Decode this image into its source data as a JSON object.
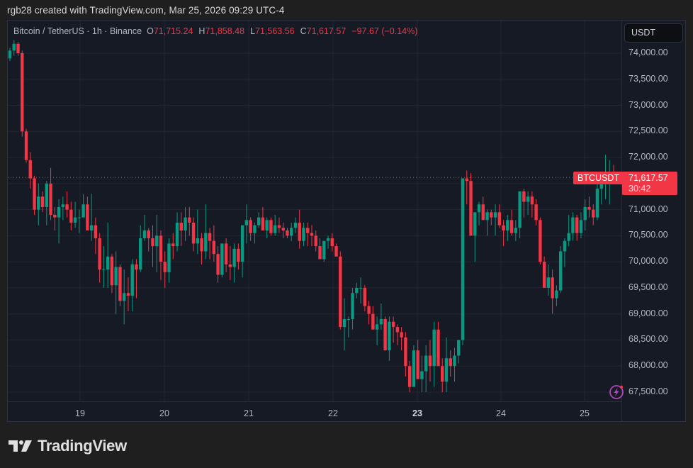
{
  "credit": "rgb28 created with TradingView.com, Mar 25, 2026 09:29 UTC-4",
  "legend": {
    "symbol": "Bitcoin / TetherUS · 1h · Binance",
    "o_label": "O",
    "o_value": "71,715.24",
    "h_label": "H",
    "h_value": "71,858.48",
    "l_label": "L",
    "l_value": "71,563.56",
    "c_label": "C",
    "c_value": "71,617.57",
    "change": "−97.67 (−0.14%)"
  },
  "currency_button": "USDT",
  "last_price": {
    "symbol": "BTCUSDT",
    "price": "71,617.57",
    "countdown": "30:42"
  },
  "brand": "TradingView",
  "icons": {
    "logo": "tradingview-logo-icon",
    "alert": "lightning-bolt-icon"
  },
  "colors": {
    "up": "#089981",
    "down": "#f23645",
    "bg": "#161a25",
    "grid": "#232733",
    "text": "#b2b5be",
    "alert": "#9c27b0"
  },
  "y_axis": [
    "74,000.00",
    "73,500.00",
    "73,000.00",
    "72,500.00",
    "72,000.00",
    "71,000.00",
    "70,500.00",
    "70,000.00",
    "69,500.00",
    "69,000.00",
    "68,500.00",
    "68,000.00",
    "67,500.00"
  ],
  "x_axis": [
    "19",
    "20",
    "21",
    "22",
    "23",
    "24",
    "25"
  ],
  "chart_data": {
    "type": "candlestick",
    "title": "Bitcoin / TetherUS · 1h · Binance",
    "xlabel": "",
    "ylabel": "USDT",
    "ylim": [
      67300,
      74300
    ],
    "y_ticks": [
      67500,
      68000,
      68500,
      69000,
      69500,
      70000,
      70500,
      71000,
      71500,
      72000,
      72500,
      73000,
      73500,
      74000
    ],
    "x_ticks": [
      "19",
      "20",
      "21",
      "22",
      "23",
      "24",
      "25"
    ],
    "last_price": 71617.57,
    "grid": true,
    "candles": [
      [
        73900,
        74100,
        73850,
        74050
      ],
      [
        74050,
        74250,
        73950,
        74180
      ],
      [
        74180,
        74220,
        73950,
        74000
      ],
      [
        74000,
        74050,
        72400,
        72500
      ],
      [
        72500,
        72550,
        71900,
        71950
      ],
      [
        71950,
        72100,
        71400,
        71600
      ],
      [
        71600,
        71650,
        70900,
        71000
      ],
      [
        71000,
        71500,
        70700,
        71250
      ],
      [
        71250,
        71350,
        70950,
        71050
      ],
      [
        71050,
        71550,
        70700,
        71500
      ],
      [
        71500,
        71800,
        70800,
        70900
      ],
      [
        70900,
        71050,
        70600,
        70850
      ],
      [
        70850,
        71200,
        70350,
        71050
      ],
      [
        71050,
        71250,
        70800,
        71100
      ],
      [
        71100,
        71350,
        70850,
        71000
      ],
      [
        71000,
        71150,
        70600,
        70750
      ],
      [
        70750,
        71150,
        70650,
        70850
      ],
      [
        70850,
        71000,
        70550,
        70850
      ],
      [
        70850,
        71300,
        70900,
        71100
      ],
      [
        71100,
        71250,
        70600,
        70600
      ],
      [
        70600,
        71300,
        70400,
        70700
      ],
      [
        70700,
        70850,
        70150,
        70450
      ],
      [
        70450,
        70550,
        69600,
        69850
      ],
      [
        69850,
        70300,
        69500,
        69850
      ],
      [
        69850,
        70750,
        69500,
        70100
      ],
      [
        70100,
        70150,
        69400,
        69550
      ],
      [
        69550,
        70200,
        69000,
        69900
      ],
      [
        69900,
        69950,
        69150,
        69250
      ],
      [
        69250,
        69850,
        68800,
        69400
      ],
      [
        69400,
        69700,
        69050,
        69350
      ],
      [
        69350,
        70050,
        69050,
        69950
      ],
      [
        69950,
        70050,
        69300,
        69850
      ],
      [
        69850,
        70700,
        69800,
        70450
      ],
      [
        70450,
        70900,
        70400,
        70600
      ],
      [
        70600,
        70650,
        70200,
        70450
      ],
      [
        70450,
        70700,
        69900,
        70300
      ],
      [
        70300,
        70900,
        69800,
        70500
      ],
      [
        70500,
        70600,
        69650,
        70000
      ],
      [
        70000,
        70200,
        69500,
        69800
      ],
      [
        69800,
        70450,
        69600,
        70350
      ],
      [
        70350,
        70550,
        70050,
        70300
      ],
      [
        70300,
        70950,
        70200,
        70750
      ],
      [
        70750,
        70950,
        70300,
        70600
      ],
      [
        70600,
        71050,
        70400,
        70850
      ],
      [
        70850,
        71050,
        70500,
        70750
      ],
      [
        70750,
        70850,
        70200,
        70350
      ],
      [
        70350,
        71000,
        70150,
        70450
      ],
      [
        70450,
        70550,
        69950,
        70200
      ],
      [
        70200,
        71100,
        70050,
        70550
      ],
      [
        70550,
        70650,
        70050,
        70400
      ],
      [
        70400,
        70700,
        70000,
        70150
      ],
      [
        70150,
        70300,
        69600,
        69750
      ],
      [
        69750,
        70300,
        69700,
        70350
      ],
      [
        70350,
        70450,
        69800,
        69950
      ],
      [
        69950,
        70300,
        69650,
        69900
      ],
      [
        69900,
        70350,
        69600,
        70250
      ],
      [
        70250,
        70350,
        69850,
        70000
      ],
      [
        70000,
        70650,
        69700,
        70700
      ],
      [
        70700,
        71100,
        70350,
        70800
      ],
      [
        70800,
        70850,
        70400,
        70550
      ],
      [
        70550,
        70750,
        70350,
        70700
      ],
      [
        70700,
        70950,
        70650,
        70850
      ],
      [
        70850,
        71050,
        70700,
        70600
      ],
      [
        70600,
        70850,
        70450,
        70800
      ],
      [
        70800,
        70850,
        70500,
        70550
      ],
      [
        70550,
        70900,
        70500,
        70700
      ],
      [
        70700,
        70850,
        70550,
        70650
      ],
      [
        70650,
        70750,
        70450,
        70600
      ],
      [
        70600,
        70650,
        70450,
        70500
      ],
      [
        70500,
        70750,
        70400,
        70650
      ],
      [
        70650,
        70850,
        70550,
        70750
      ],
      [
        70750,
        71000,
        70250,
        70400
      ],
      [
        70400,
        70750,
        70300,
        70650
      ],
      [
        70650,
        70750,
        70300,
        70550
      ],
      [
        70550,
        70700,
        70300,
        70500
      ],
      [
        70500,
        70600,
        70200,
        70300
      ],
      [
        70300,
        70450,
        70050,
        70050
      ],
      [
        70050,
        70350,
        70000,
        70400
      ],
      [
        70400,
        70500,
        70250,
        70450
      ],
      [
        70450,
        70550,
        70200,
        70300
      ],
      [
        70300,
        70350,
        70100,
        70100
      ],
      [
        70100,
        70200,
        68700,
        68750
      ],
      [
        68750,
        69300,
        68300,
        68900
      ],
      [
        68900,
        68950,
        68550,
        68900
      ],
      [
        68900,
        69500,
        68700,
        69400
      ],
      [
        69400,
        69600,
        69300,
        69500
      ],
      [
        69500,
        69700,
        69200,
        69500
      ],
      [
        69500,
        69550,
        69050,
        69150
      ],
      [
        69150,
        69250,
        68800,
        69000
      ],
      [
        69000,
        69150,
        68900,
        68700
      ],
      [
        68700,
        68950,
        68400,
        68800
      ],
      [
        68800,
        69200,
        68700,
        68900
      ],
      [
        68900,
        68950,
        68300,
        68300
      ],
      [
        68300,
        68950,
        68100,
        68850
      ],
      [
        68850,
        68950,
        68450,
        68750
      ],
      [
        68750,
        68800,
        68400,
        68650
      ],
      [
        68650,
        68750,
        68300,
        68550
      ],
      [
        68550,
        68650,
        67800,
        68000
      ],
      [
        68000,
        68100,
        67500,
        67600
      ],
      [
        67600,
        68400,
        67800,
        68300
      ],
      [
        68300,
        68500,
        67750,
        67750
      ],
      [
        67750,
        68200,
        67500,
        67900
      ],
      [
        67900,
        68400,
        67500,
        68200
      ],
      [
        68200,
        68500,
        67700,
        68000
      ],
      [
        68000,
        68850,
        67600,
        68700
      ],
      [
        68700,
        68850,
        68150,
        68000
      ],
      [
        68000,
        68150,
        67500,
        67700
      ],
      [
        67700,
        68550,
        67500,
        68150
      ],
      [
        68150,
        68300,
        67800,
        68000
      ],
      [
        68000,
        68350,
        67700,
        68200
      ],
      [
        68200,
        68500,
        68050,
        68500
      ],
      [
        68500,
        71500,
        68400,
        71600
      ],
      [
        71600,
        71750,
        71100,
        71550
      ],
      [
        71550,
        71700,
        70500,
        70500
      ],
      [
        70500,
        70750,
        70000,
        70950
      ],
      [
        70950,
        71150,
        70700,
        71100
      ],
      [
        71100,
        71250,
        70850,
        70800
      ],
      [
        70800,
        71000,
        70500,
        70950
      ],
      [
        70950,
        71000,
        70700,
        70850
      ],
      [
        70850,
        71100,
        70500,
        70950
      ],
      [
        70950,
        71100,
        70650,
        70700
      ],
      [
        70700,
        70800,
        70300,
        70600
      ],
      [
        70600,
        70900,
        70400,
        70800
      ],
      [
        70800,
        71000,
        70500,
        70550
      ],
      [
        70550,
        70800,
        70400,
        70650
      ],
      [
        70650,
        71300,
        70450,
        71350
      ],
      [
        71350,
        71400,
        70850,
        71150
      ],
      [
        71150,
        71350,
        70900,
        71250
      ],
      [
        71250,
        71350,
        70850,
        71100
      ],
      [
        71100,
        71200,
        70700,
        70800
      ],
      [
        70800,
        70850,
        69950,
        70000
      ],
      [
        70000,
        70100,
        69600,
        69500
      ],
      [
        69500,
        69950,
        69350,
        69700
      ],
      [
        69700,
        69850,
        69000,
        69300
      ],
      [
        69300,
        69550,
        69150,
        69450
      ],
      [
        69450,
        70300,
        69400,
        70200
      ],
      [
        70200,
        70450,
        69900,
        70400
      ],
      [
        70400,
        70900,
        70300,
        70550
      ],
      [
        70550,
        70950,
        70400,
        70850
      ],
      [
        70850,
        70900,
        70400,
        70550
      ],
      [
        70550,
        70950,
        70450,
        70800
      ],
      [
        70800,
        71200,
        70600,
        71050
      ],
      [
        71050,
        71250,
        70850,
        71000
      ],
      [
        71000,
        71100,
        70700,
        70850
      ],
      [
        70850,
        71500,
        70800,
        71400
      ],
      [
        71400,
        71550,
        71100,
        71500
      ],
      [
        71500,
        72050,
        71200,
        71650
      ],
      [
        71650,
        71950,
        71100,
        71720
      ],
      [
        71715,
        71858,
        71563,
        71617
      ]
    ]
  }
}
